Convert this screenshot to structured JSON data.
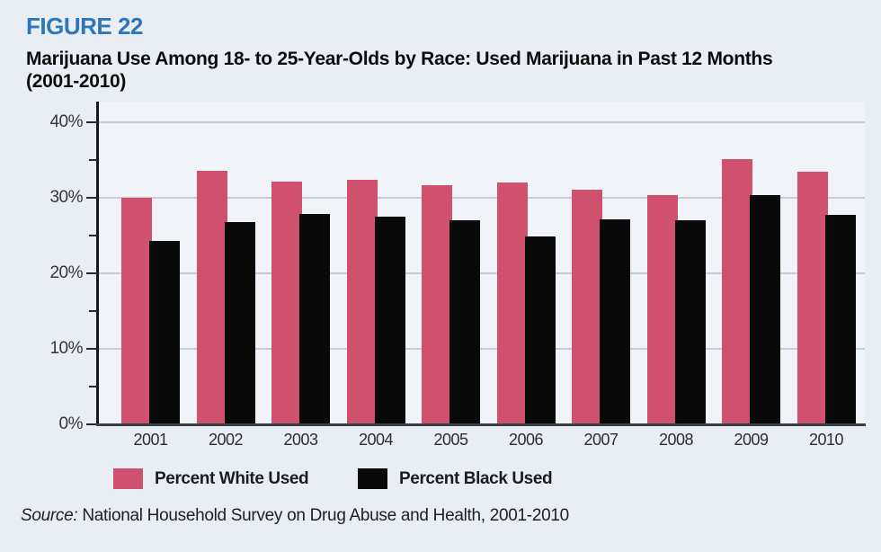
{
  "figure_label": "FIGURE 22",
  "title": "Marijuana Use Among 18- to 25-Year-Olds by Race: Used Marijuana in Past 12 Months (2001-2010)",
  "source": {
    "prefix": "Source:",
    "text": " National Household Survey on Drug Abuse and Health, 2001-2010"
  },
  "colors": {
    "background": "#e9eef5",
    "plot_background": "#f0f4f9",
    "figure_label_blue": "#2e75b9",
    "white_series_pink": "#d05070",
    "black_series_black": "#0a0a0b",
    "gridline_gray": "#c7cdd5"
  },
  "chart_data": {
    "type": "bar",
    "title": "Marijuana Use Among 18- to 25-Year-Olds by Race: Used Marijuana in Past 12 Months (2001-2010)",
    "categories": [
      "2001",
      "2002",
      "2003",
      "2004",
      "2005",
      "2006",
      "2007",
      "2008",
      "2009",
      "2010"
    ],
    "series": [
      {
        "name": "Percent White Used",
        "color": "#d05070",
        "values": [
          30.0,
          33.6,
          32.1,
          32.4,
          31.7,
          32.0,
          31.1,
          30.3,
          35.1,
          33.5
        ]
      },
      {
        "name": "Percent Black Used",
        "color": "#0a0a0b",
        "values": [
          24.3,
          26.8,
          27.9,
          27.5,
          27.0,
          24.9,
          27.2,
          27.0,
          30.4,
          27.7
        ]
      }
    ],
    "xlabel": "",
    "ylabel": "",
    "ylim": [
      0,
      40
    ],
    "y_major_ticks": [
      0,
      10,
      20,
      30,
      40
    ],
    "y_minor_ticks": [
      5,
      15,
      25,
      35
    ],
    "y_tick_labels": [
      "0%",
      "10%",
      "20%",
      "30%",
      "40%"
    ],
    "grid": true,
    "legend_position": "bottom"
  }
}
